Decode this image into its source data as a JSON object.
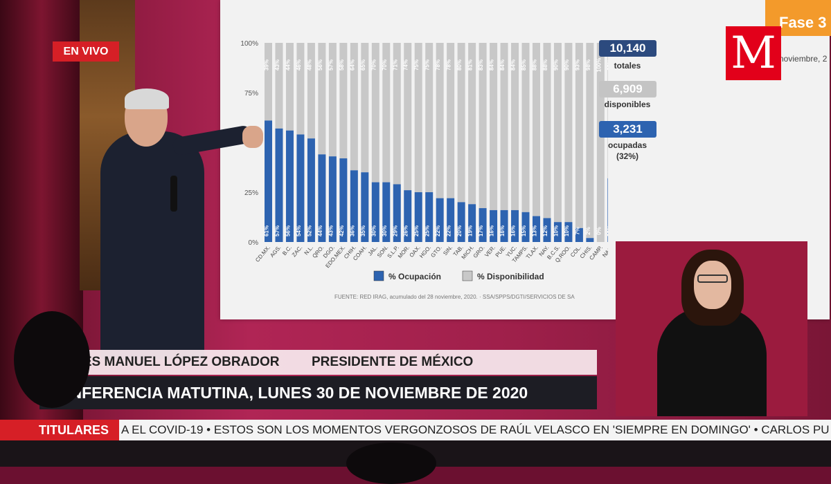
{
  "broadcast": {
    "live_badge": "EN VIVO",
    "lower_third": {
      "name": "ANDRÉS MANUEL LÓPEZ OBRADOR",
      "role": "PRESIDENTE DE MÉXICO",
      "event": "CONFERENCIA MATUTINA, LUNES 30 DE NOVIEMBRE DE 2020"
    },
    "ticker": {
      "label": "TITULARES",
      "text": "A EL COVID-19  •  ESTOS SON LOS MOMENTOS VERGONZOSOS DE RAÚL VELASCO EN 'SIEMPRE EN DOMINGO'  •  CARLOS PU"
    },
    "logo_letter": "M"
  },
  "slide": {
    "phase_label": "Fase 3",
    "phase_sub": "noviembre, 2",
    "stats": {
      "total_value": "10,140",
      "total_label": "totales",
      "available_value": "6,909",
      "available_label": "disponibles",
      "occupied_value": "3,231",
      "occupied_label": "ocupadas",
      "occupied_pct": "(32%)"
    },
    "source": "FUENTE: RED IRAG, acumulado del 28 noviembre, 2020.  ·  SSA/SPPS/DGTI/SERVICIOS DE SA"
  },
  "colors": {
    "occupancy": "#2d63b0",
    "availability": "#c8c8c8",
    "brand_red": "#e2001a",
    "phase_orange": "#f39a2b"
  },
  "chart_data": {
    "type": "bar",
    "stacked": true,
    "title": "",
    "xlabel": "",
    "ylabel": "",
    "ylim": [
      0,
      100
    ],
    "y_ticks": [
      "0%",
      "25%",
      "75%",
      "100%"
    ],
    "categories": [
      "CD.MX.",
      "AGS.",
      "B.C.",
      "ZAC.",
      "N.L.",
      "QRO.",
      "DGO.",
      "EDO.MEX.",
      "CHIH.",
      "COAH.",
      "JAL.",
      "SON.",
      "S.L.P.",
      "MOR.",
      "OAX.",
      "HGO.",
      "GTO.",
      "SIN.",
      "TAB.",
      "MICH.",
      "GRO.",
      "VER.",
      "PUE.",
      "YUC.",
      "TAMPS.",
      "TLAX.",
      "NAY.",
      "B.C.S.",
      "Q.ROO.",
      "COL.",
      "CHIS.",
      "CAMP.",
      "NAC."
    ],
    "series": [
      {
        "name": "% Ocupación",
        "values": [
          61,
          57,
          56,
          54,
          52,
          44,
          43,
          42,
          36,
          35,
          30,
          30,
          29,
          26,
          25,
          25,
          22,
          22,
          20,
          19,
          17,
          16,
          16,
          16,
          15,
          13,
          12,
          10,
          10,
          7,
          2,
          0,
          32
        ]
      },
      {
        "name": "% Disponibilidad",
        "values": [
          39,
          43,
          44,
          46,
          48,
          56,
          57,
          58,
          64,
          65,
          70,
          70,
          71,
          74,
          75,
          75,
          78,
          78,
          80,
          81,
          83,
          84,
          84,
          84,
          85,
          88,
          88,
          90,
          90,
          93,
          98,
          100,
          68
        ]
      }
    ],
    "legend": [
      "% Ocupación",
      "% Disponibilidad"
    ],
    "legend_position": "bottom",
    "grid": false
  }
}
